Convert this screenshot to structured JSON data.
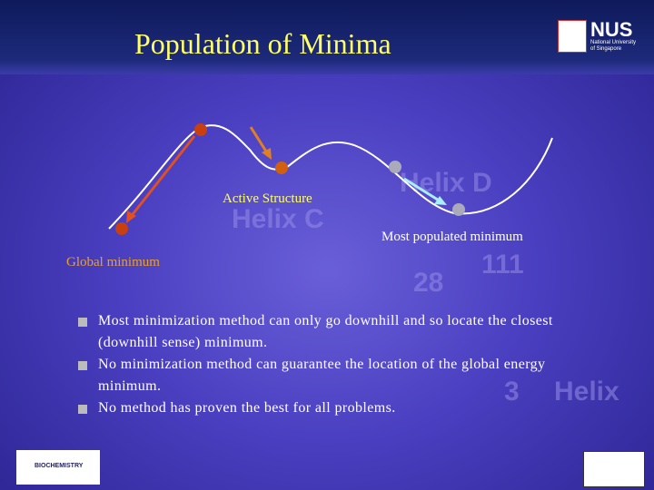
{
  "title": "Population of Minima",
  "logo": {
    "name": "NUS",
    "subtitle_1": "National University",
    "subtitle_2": "of Singapore"
  },
  "labels": {
    "active": "Active Structure",
    "most_populated": "Most populated minimum",
    "global": "Global minimum"
  },
  "background_text": [
    "Helix D",
    "Helix C",
    "111",
    "28",
    "3",
    "Helix"
  ],
  "bullets": [
    "Most minimization method can only go downhill and so locate the closest (downhill sense) minimum.",
    "No minimization method can guarantee the location of the global energy minimum.",
    "No method has proven the best for all problems."
  ],
  "footer_logo": "BIOCHEMISTRY"
}
